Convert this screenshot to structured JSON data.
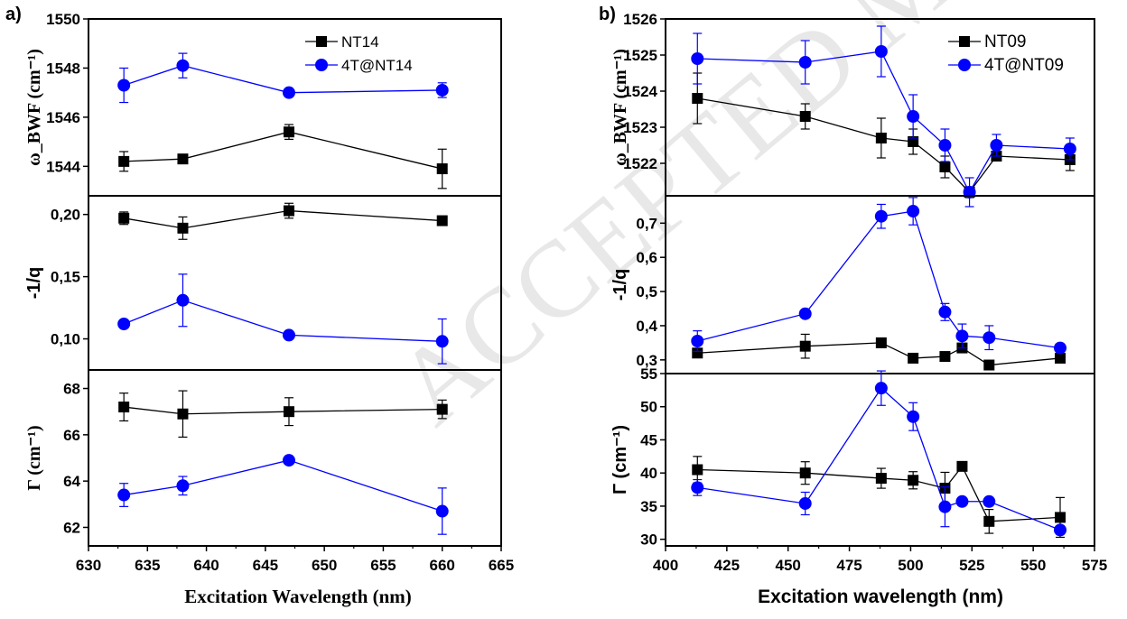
{
  "watermark": "ACCEPTED MANUSCRIPT",
  "colors": {
    "black_series": "#000000",
    "blue_series": "#0000ff"
  },
  "chart_data": [
    {
      "panel": "a)",
      "type": "line",
      "xlabel": "Excitation Wavelength (nm)",
      "x_ticks": [
        "630",
        "635",
        "640",
        "645",
        "650",
        "655",
        "660",
        "665"
      ],
      "xlim": [
        630,
        665
      ],
      "legend_location": "top-right",
      "series_names": [
        "NT14",
        "4T@NT14"
      ],
      "subplots": [
        {
          "id": "omega",
          "ylabel": "ω_BWF (cm⁻¹)",
          "ylim": [
            1542.8,
            1550
          ],
          "y_ticks": [
            "1544",
            "1546",
            "1548",
            "1550"
          ],
          "series": [
            {
              "name": "NT14",
              "marker": "square",
              "color": "#000000",
              "x": [
                633,
                638,
                647,
                660
              ],
              "y": [
                1544.2,
                1544.3,
                1545.4,
                1543.9
              ],
              "err": [
                0.4,
                0.1,
                0.3,
                0.8
              ]
            },
            {
              "name": "4T@NT14",
              "marker": "circle",
              "color": "#0000ff",
              "x": [
                633,
                638,
                647,
                660
              ],
              "y": [
                1547.3,
                1548.1,
                1547.0,
                1547.1
              ],
              "err": [
                0.7,
                0.5,
                0.1,
                0.3
              ]
            }
          ]
        },
        {
          "id": "q",
          "ylabel": "-1/q",
          "ylim": [
            0.075,
            0.215
          ],
          "y_ticks": [
            "0,10",
            "0,15",
            "0,20"
          ],
          "series": [
            {
              "name": "NT14",
              "marker": "square",
              "color": "#000000",
              "x": [
                633,
                638,
                647,
                660
              ],
              "y": [
                0.197,
                0.189,
                0.203,
                0.195
              ],
              "err": [
                0.005,
                0.009,
                0.006,
                0.002
              ]
            },
            {
              "name": "4T@NT14",
              "marker": "circle",
              "color": "#0000ff",
              "x": [
                633,
                638,
                647,
                660
              ],
              "y": [
                0.112,
                0.131,
                0.103,
                0.098
              ],
              "err": [
                0.002,
                0.021,
                0.002,
                0.018
              ]
            }
          ]
        },
        {
          "id": "gamma",
          "ylabel": "Γ (cm⁻¹)",
          "ylim": [
            61.2,
            68.8
          ],
          "y_ticks": [
            "62",
            "64",
            "66",
            "68"
          ],
          "series": [
            {
              "name": "NT14",
              "marker": "square",
              "color": "#000000",
              "x": [
                633,
                638,
                647,
                660
              ],
              "y": [
                67.2,
                66.9,
                67.0,
                67.1
              ],
              "err": [
                0.6,
                1.0,
                0.6,
                0.4
              ]
            },
            {
              "name": "4T@NT14",
              "marker": "circle",
              "color": "#0000ff",
              "x": [
                633,
                638,
                647,
                660
              ],
              "y": [
                63.4,
                63.8,
                64.9,
                62.7
              ],
              "err": [
                0.5,
                0.4,
                0.1,
                1.0
              ]
            }
          ]
        }
      ]
    },
    {
      "panel": "b)",
      "type": "line",
      "xlabel": "Excitation wavelength (nm)",
      "x_ticks": [
        "400",
        "425",
        "450",
        "475",
        "500",
        "525",
        "550",
        "575"
      ],
      "xlim": [
        400,
        575
      ],
      "legend_location": "top-right",
      "series_names": [
        "NT09",
        "4T@NT09"
      ],
      "subplots": [
        {
          "id": "omega",
          "ylabel": "ω_BWF (cm⁻¹)",
          "ylim": [
            1521.1,
            1526
          ],
          "y_ticks": [
            "1522",
            "1523",
            "1524",
            "1525",
            "1526"
          ],
          "series": [
            {
              "name": "NT09",
              "marker": "square",
              "color": "#000000",
              "x": [
                413,
                457,
                488,
                501,
                514,
                524,
                535,
                565
              ],
              "y": [
                1523.8,
                1523.3,
                1522.7,
                1522.6,
                1521.9,
                1521.2,
                1522.2,
                1522.1
              ],
              "err": [
                0.7,
                0.35,
                0.55,
                0.35,
                0.3,
                0.15,
                0.1,
                0.3
              ]
            },
            {
              "name": "4T@NT09",
              "marker": "circle",
              "color": "#0000ff",
              "x": [
                413,
                457,
                488,
                501,
                514,
                524,
                535,
                565
              ],
              "y": [
                1524.9,
                1524.8,
                1525.1,
                1523.3,
                1522.5,
                1521.2,
                1522.5,
                1522.4
              ],
              "err": [
                0.7,
                0.6,
                0.7,
                0.6,
                0.45,
                0.4,
                0.3,
                0.3
              ]
            }
          ]
        },
        {
          "id": "q",
          "ylabel": "-1/q",
          "ylim": [
            0.26,
            0.78
          ],
          "y_ticks": [
            "0,3",
            "0,4",
            "0,5",
            "0,6",
            "0,7"
          ],
          "series": [
            {
              "name": "NT09",
              "marker": "square",
              "color": "#000000",
              "x": [
                413,
                457,
                488,
                501,
                514,
                521,
                532,
                561
              ],
              "y": [
                0.32,
                0.34,
                0.35,
                0.305,
                0.31,
                0.335,
                0.285,
                0.305
              ],
              "err": [
                0.01,
                0.035,
                0.01,
                0.01,
                0.01,
                0.01,
                0.01,
                0.01
              ]
            },
            {
              "name": "4T@NT09",
              "marker": "circle",
              "color": "#0000ff",
              "x": [
                413,
                457,
                488,
                501,
                514,
                521,
                532,
                561
              ],
              "y": [
                0.355,
                0.435,
                0.72,
                0.735,
                0.44,
                0.37,
                0.365,
                0.335
              ],
              "err": [
                0.03,
                0.01,
                0.035,
                0.04,
                0.025,
                0.035,
                0.035,
                0.01
              ]
            }
          ]
        },
        {
          "id": "gamma",
          "ylabel": "Γ (cm⁻¹)",
          "ylim": [
            29,
            55
          ],
          "y_ticks": [
            "30",
            "35",
            "40",
            "45",
            "50",
            "55"
          ],
          "series": [
            {
              "name": "NT09",
              "marker": "square",
              "color": "#000000",
              "x": [
                413,
                457,
                488,
                501,
                514,
                521,
                532,
                561
              ],
              "y": [
                40.5,
                40.0,
                39.2,
                38.9,
                37.7,
                41.0,
                32.7,
                33.3
              ],
              "err": [
                2.0,
                1.7,
                1.5,
                1.3,
                2.4,
                0.6,
                1.8,
                3.0
              ]
            },
            {
              "name": "4T@NT09",
              "marker": "circle",
              "color": "#0000ff",
              "x": [
                413,
                457,
                488,
                501,
                514,
                521,
                532,
                561
              ],
              "y": [
                37.8,
                35.4,
                52.8,
                48.5,
                34.9,
                35.7,
                35.7,
                31.4
              ],
              "err": [
                1.2,
                1.7,
                2.6,
                2.1,
                3.0,
                0.6,
                0.6,
                0.6
              ]
            }
          ]
        }
      ]
    }
  ]
}
